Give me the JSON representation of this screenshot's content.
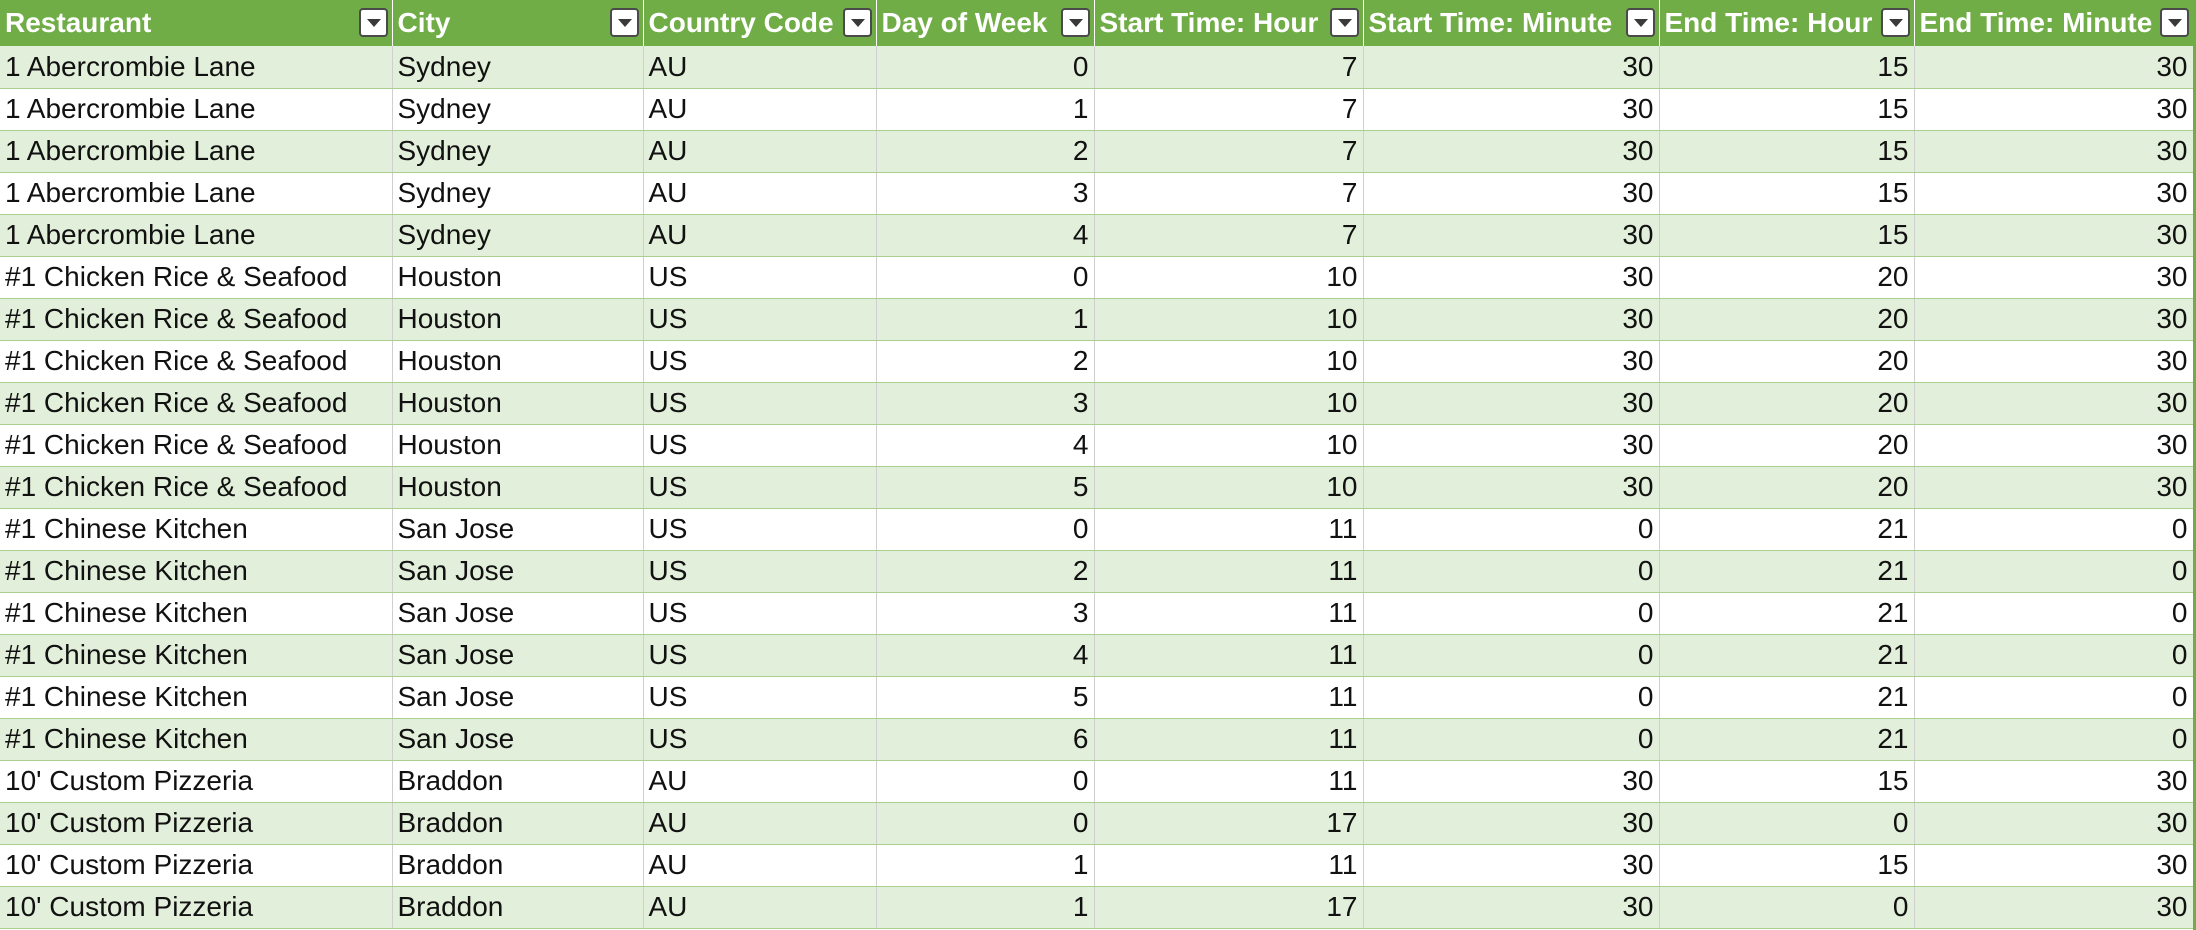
{
  "table": {
    "columns": [
      {
        "label": "Restaurant",
        "align": "left"
      },
      {
        "label": "City",
        "align": "left"
      },
      {
        "label": "Country Code",
        "align": "left"
      },
      {
        "label": "Day of Week",
        "align": "right"
      },
      {
        "label": "Start Time: Hour",
        "align": "right"
      },
      {
        "label": "Start Time: Minute",
        "align": "right"
      },
      {
        "label": "End Time: Hour",
        "align": "right"
      },
      {
        "label": "End Time: Minute",
        "align": "right"
      }
    ],
    "filter_icon": "dropdown-arrow-icon",
    "colors": {
      "header_bg": "#70ad47",
      "header_text": "#ffffff",
      "band_row_bg": "#e2efda",
      "plain_row_bg": "#ffffff"
    },
    "rows": [
      [
        "1 Abercrombie Lane",
        "Sydney",
        "AU",
        "0",
        "7",
        "30",
        "15",
        "30"
      ],
      [
        "1 Abercrombie Lane",
        "Sydney",
        "AU",
        "1",
        "7",
        "30",
        "15",
        "30"
      ],
      [
        "1 Abercrombie Lane",
        "Sydney",
        "AU",
        "2",
        "7",
        "30",
        "15",
        "30"
      ],
      [
        "1 Abercrombie Lane",
        "Sydney",
        "AU",
        "3",
        "7",
        "30",
        "15",
        "30"
      ],
      [
        "1 Abercrombie Lane",
        "Sydney",
        "AU",
        "4",
        "7",
        "30",
        "15",
        "30"
      ],
      [
        "#1 Chicken Rice & Seafood",
        "Houston",
        "US",
        "0",
        "10",
        "30",
        "20",
        "30"
      ],
      [
        "#1 Chicken Rice & Seafood",
        "Houston",
        "US",
        "1",
        "10",
        "30",
        "20",
        "30"
      ],
      [
        "#1 Chicken Rice & Seafood",
        "Houston",
        "US",
        "2",
        "10",
        "30",
        "20",
        "30"
      ],
      [
        "#1 Chicken Rice & Seafood",
        "Houston",
        "US",
        "3",
        "10",
        "30",
        "20",
        "30"
      ],
      [
        "#1 Chicken Rice & Seafood",
        "Houston",
        "US",
        "4",
        "10",
        "30",
        "20",
        "30"
      ],
      [
        "#1 Chicken Rice & Seafood",
        "Houston",
        "US",
        "5",
        "10",
        "30",
        "20",
        "30"
      ],
      [
        "#1 Chinese Kitchen",
        "San Jose",
        "US",
        "0",
        "11",
        "0",
        "21",
        "0"
      ],
      [
        "#1 Chinese Kitchen",
        "San Jose",
        "US",
        "2",
        "11",
        "0",
        "21",
        "0"
      ],
      [
        "#1 Chinese Kitchen",
        "San Jose",
        "US",
        "3",
        "11",
        "0",
        "21",
        "0"
      ],
      [
        "#1 Chinese Kitchen",
        "San Jose",
        "US",
        "4",
        "11",
        "0",
        "21",
        "0"
      ],
      [
        "#1 Chinese Kitchen",
        "San Jose",
        "US",
        "5",
        "11",
        "0",
        "21",
        "0"
      ],
      [
        "#1 Chinese Kitchen",
        "San Jose",
        "US",
        "6",
        "11",
        "0",
        "21",
        "0"
      ],
      [
        "10' Custom Pizzeria",
        "Braddon",
        "AU",
        "0",
        "11",
        "30",
        "15",
        "30"
      ],
      [
        "10' Custom Pizzeria",
        "Braddon",
        "AU",
        "0",
        "17",
        "30",
        "0",
        "30"
      ],
      [
        "10' Custom Pizzeria",
        "Braddon",
        "AU",
        "1",
        "11",
        "30",
        "15",
        "30"
      ],
      [
        "10' Custom Pizzeria",
        "Braddon",
        "AU",
        "1",
        "17",
        "30",
        "0",
        "30"
      ]
    ]
  }
}
